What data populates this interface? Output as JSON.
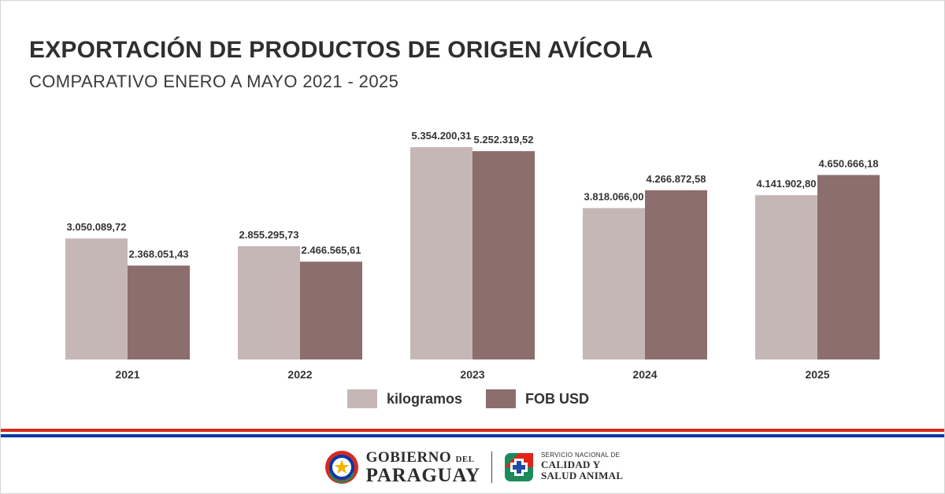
{
  "header": {
    "title": "EXPORTACIÓN DE PRODUCTOS DE ORIGEN AVÍCOLA",
    "subtitle": "COMPARATIVO ENERO A MAYO 2021 - 2025"
  },
  "chart_data": {
    "type": "bar",
    "categories": [
      "2021",
      "2022",
      "2023",
      "2024",
      "2025"
    ],
    "series": [
      {
        "name": "kilogramos",
        "values": [
          3050089.72,
          2855295.73,
          5354200.31,
          3818066.0,
          4141902.8
        ],
        "labels": [
          "3.050.089,72",
          "2.855.295,73",
          "5.354.200,31",
          "3.818.066,00",
          "4.141.902,80"
        ],
        "color": "#c6b7b7"
      },
      {
        "name": "FOB USD",
        "values": [
          2368051.43,
          2466565.61,
          5252319.52,
          4266872.58,
          4650666.18
        ],
        "labels": [
          "2.368.051,43",
          "2.466.565,61",
          "5.252.319,52",
          "4.266.872,58",
          "4.650.666,18"
        ],
        "color": "#8c6e6c"
      }
    ],
    "legend": "bottom-center",
    "grid": false
  },
  "footer": {
    "gov_line1": "GOBIERNO",
    "gov_del": "DEL",
    "gov_line2": "PARAGUAY",
    "senacsa_line1": "SERVICIO NACIONAL DE",
    "senacsa_line2": "CALIDAD Y",
    "senacsa_line3": "SALUD ANIMAL"
  },
  "colors": {
    "flag_red": "#d52b1e",
    "flag_blue": "#0038a8",
    "senacsa_red": "#e2231a",
    "senacsa_green": "#1d8a5a",
    "senacsa_blue": "#1f4e9e"
  }
}
